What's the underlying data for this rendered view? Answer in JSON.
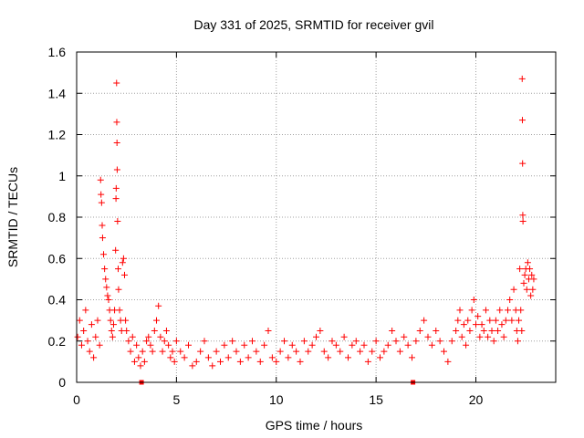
{
  "chart_data": {
    "type": "scatter",
    "title": "Day 331 of 2025, SRMTID for receiver gvil",
    "xlabel": "GPS time / hours",
    "ylabel": "SRMTID / TECUs",
    "xlim": [
      0,
      24
    ],
    "ylim": [
      0,
      1.6
    ],
    "xticks": [
      0,
      5,
      10,
      15,
      20
    ],
    "xtick_labels": [
      "0",
      "5",
      "10",
      "15",
      "20"
    ],
    "yticks": [
      0,
      0.2,
      0.4,
      0.6,
      0.8,
      1.0,
      1.2,
      1.4,
      1.6
    ],
    "ytick_labels": [
      "0",
      "0.2",
      "0.4",
      "0.6",
      "0.8",
      "1",
      "1.2",
      "1.4",
      "1.6"
    ],
    "grid": true,
    "marker": "+",
    "color": "#ff0000",
    "bottom_markers_x": [
      3.25,
      16.85
    ],
    "series": [
      {
        "name": "SRMTID",
        "x": [
          0.05,
          0.15,
          0.25,
          0.35,
          0.45,
          0.55,
          0.65,
          0.75,
          0.85,
          0.95,
          1.05,
          1.15,
          1.2,
          1.22,
          1.25,
          1.28,
          1.3,
          1.35,
          1.4,
          1.45,
          1.5,
          1.55,
          1.6,
          1.65,
          1.7,
          1.75,
          1.8,
          1.85,
          1.9,
          1.95,
          1.97,
          1.98,
          2.0,
          2.01,
          2.02,
          2.03,
          2.05,
          2.08,
          2.1,
          2.15,
          2.2,
          2.25,
          2.3,
          2.35,
          2.4,
          2.45,
          2.5,
          2.6,
          2.7,
          2.8,
          2.9,
          3.0,
          3.1,
          3.2,
          3.3,
          3.4,
          3.5,
          3.6,
          3.7,
          3.8,
          3.9,
          4.0,
          4.1,
          4.2,
          4.3,
          4.4,
          4.5,
          4.6,
          4.7,
          4.8,
          4.9,
          5.0,
          5.2,
          5.4,
          5.6,
          5.8,
          6.0,
          6.2,
          6.4,
          6.6,
          6.8,
          7.0,
          7.2,
          7.4,
          7.6,
          7.8,
          8.0,
          8.2,
          8.4,
          8.6,
          8.8,
          9.0,
          9.2,
          9.4,
          9.6,
          9.8,
          10.0,
          10.2,
          10.4,
          10.6,
          10.8,
          11.0,
          11.2,
          11.4,
          11.6,
          11.8,
          12.0,
          12.2,
          12.4,
          12.6,
          12.8,
          13.0,
          13.2,
          13.4,
          13.6,
          13.8,
          14.0,
          14.2,
          14.4,
          14.6,
          14.8,
          15.0,
          15.2,
          15.4,
          15.6,
          15.8,
          16.0,
          16.2,
          16.4,
          16.6,
          16.8,
          17.0,
          17.2,
          17.4,
          17.6,
          17.8,
          18.0,
          18.2,
          18.4,
          18.6,
          18.8,
          19.0,
          19.1,
          19.2,
          19.3,
          19.4,
          19.5,
          19.6,
          19.7,
          19.8,
          19.9,
          20.0,
          20.1,
          20.2,
          20.3,
          20.4,
          20.5,
          20.6,
          20.7,
          20.8,
          20.9,
          21.0,
          21.1,
          21.2,
          21.3,
          21.4,
          21.5,
          21.6,
          21.7,
          21.8,
          21.9,
          22.0,
          22.05,
          22.1,
          22.15,
          22.2,
          22.25,
          22.3,
          22.32,
          22.33,
          22.34,
          22.35,
          22.36,
          22.4,
          22.45,
          22.5,
          22.55,
          22.6,
          22.65,
          22.7,
          22.75,
          22.8,
          22.85,
          22.9
        ],
        "y": [
          0.22,
          0.3,
          0.18,
          0.25,
          0.35,
          0.2,
          0.15,
          0.28,
          0.12,
          0.22,
          0.3,
          0.18,
          0.98,
          0.91,
          0.87,
          0.76,
          0.7,
          0.62,
          0.55,
          0.5,
          0.46,
          0.42,
          0.4,
          0.35,
          0.3,
          0.25,
          0.22,
          0.28,
          0.35,
          0.64,
          0.89,
          0.94,
          1.45,
          1.26,
          1.16,
          1.03,
          0.78,
          0.55,
          0.45,
          0.35,
          0.3,
          0.25,
          0.58,
          0.6,
          0.52,
          0.3,
          0.25,
          0.2,
          0.15,
          0.22,
          0.1,
          0.18,
          0.12,
          0.08,
          0.15,
          0.1,
          0.2,
          0.22,
          0.18,
          0.15,
          0.25,
          0.3,
          0.37,
          0.22,
          0.15,
          0.2,
          0.25,
          0.18,
          0.12,
          0.15,
          0.1,
          0.2,
          0.15,
          0.12,
          0.18,
          0.08,
          0.1,
          0.15,
          0.2,
          0.12,
          0.08,
          0.15,
          0.1,
          0.18,
          0.12,
          0.2,
          0.15,
          0.1,
          0.18,
          0.12,
          0.2,
          0.15,
          0.1,
          0.18,
          0.25,
          0.12,
          0.1,
          0.15,
          0.2,
          0.12,
          0.18,
          0.15,
          0.1,
          0.2,
          0.15,
          0.18,
          0.22,
          0.25,
          0.15,
          0.12,
          0.2,
          0.18,
          0.15,
          0.22,
          0.12,
          0.18,
          0.2,
          0.15,
          0.18,
          0.1,
          0.15,
          0.2,
          0.12,
          0.15,
          0.18,
          0.25,
          0.2,
          0.15,
          0.22,
          0.18,
          0.12,
          0.2,
          0.25,
          0.3,
          0.22,
          0.18,
          0.25,
          0.2,
          0.15,
          0.1,
          0.2,
          0.25,
          0.3,
          0.35,
          0.22,
          0.28,
          0.18,
          0.3,
          0.25,
          0.35,
          0.4,
          0.28,
          0.32,
          0.22,
          0.28,
          0.25,
          0.35,
          0.22,
          0.3,
          0.25,
          0.2,
          0.3,
          0.25,
          0.35,
          0.28,
          0.22,
          0.3,
          0.35,
          0.4,
          0.3,
          0.45,
          0.35,
          0.25,
          0.2,
          0.3,
          0.55,
          0.35,
          0.25,
          1.47,
          1.27,
          1.06,
          0.81,
          0.78,
          0.48,
          0.52,
          0.55,
          0.45,
          0.58,
          0.5,
          0.55,
          0.42,
          0.52,
          0.45,
          0.5
        ]
      }
    ]
  }
}
